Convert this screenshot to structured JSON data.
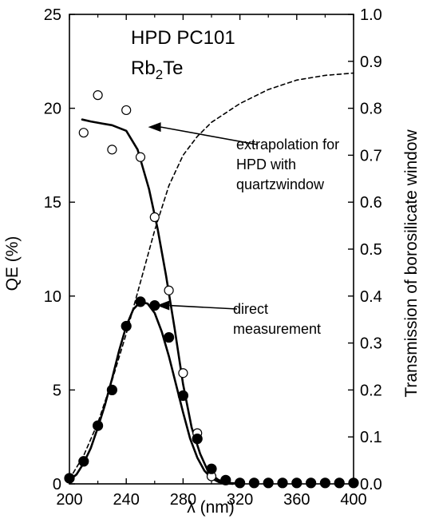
{
  "chart_data": {
    "type": "scatter",
    "title": {
      "line1": "HPD  PC101",
      "line2_base": "Rb",
      "line2_sub": "2",
      "line2_rest": "Te"
    },
    "xlabel": "λ (nm)",
    "ylabel_left": "QE (%)",
    "ylabel_right": "Transmission of borosilicate window",
    "xlim": [
      200,
      400
    ],
    "ylim_left": [
      0,
      25
    ],
    "ylim_right": [
      0.0,
      1.0
    ],
    "x_ticks": [
      200,
      240,
      280,
      320,
      360,
      400
    ],
    "y_ticks_left": [
      0,
      5,
      10,
      15,
      20,
      25
    ],
    "y_ticks_right": [
      "0.0",
      "0.1",
      "0.2",
      "0.3",
      "0.4",
      "0.5",
      "0.6",
      "0.7",
      "0.8",
      "0.9",
      "1.0"
    ],
    "series": [
      {
        "marker": "open-circle",
        "axis": "left",
        "x": [
          210,
          220,
          230,
          240,
          250,
          260,
          270,
          280,
          290,
          300
        ],
        "y": [
          18.7,
          20.7,
          17.8,
          19.9,
          17.4,
          14.2,
          10.3,
          5.9,
          2.7,
          0.4
        ]
      },
      {
        "marker": "filled-circle",
        "axis": "left",
        "x": [
          200,
          210,
          220,
          230,
          240,
          250,
          260,
          270,
          280,
          290,
          300,
          310,
          320,
          330,
          340,
          350,
          360,
          370,
          380,
          390,
          400
        ],
        "y": [
          0.3,
          1.2,
          3.1,
          5.0,
          8.4,
          9.7,
          9.5,
          7.8,
          4.7,
          2.4,
          0.8,
          0.2,
          0.05,
          0.05,
          0.05,
          0.05,
          0.05,
          0.05,
          0.05,
          0.05,
          0.05
        ]
      },
      {
        "line": "solid",
        "axis": "left",
        "x": [
          209,
          215,
          222,
          230,
          240,
          248,
          256,
          262,
          268,
          274,
          280,
          286,
          292,
          298,
          305,
          312,
          318
        ],
        "y": [
          19.4,
          19.3,
          19.2,
          19.1,
          18.8,
          17.8,
          15.7,
          13.6,
          11.1,
          8.3,
          5.3,
          3.0,
          1.6,
          0.6,
          0.2,
          0.05,
          0.02
        ]
      },
      {
        "line": "solid",
        "axis": "left",
        "x": [
          200,
          205,
          210,
          215,
          220,
          225,
          230,
          235,
          240,
          245,
          250,
          255,
          260,
          265,
          270,
          275,
          280,
          285,
          290,
          295,
          300,
          305,
          310,
          315
        ],
        "y": [
          0.2,
          0.5,
          1.1,
          1.9,
          3.0,
          4.2,
          5.6,
          7.1,
          8.4,
          9.3,
          9.7,
          9.6,
          9.1,
          8.1,
          6.8,
          5.3,
          3.8,
          2.4,
          1.4,
          0.7,
          0.3,
          0.1,
          0.03,
          0.0
        ]
      },
      {
        "line": "dashed",
        "axis": "right",
        "x": [
          200,
          210,
          220,
          230,
          240,
          250,
          260,
          270,
          280,
          290,
          300,
          320,
          340,
          360,
          380,
          400
        ],
        "y": [
          0.01,
          0.06,
          0.13,
          0.22,
          0.32,
          0.43,
          0.54,
          0.635,
          0.7,
          0.74,
          0.77,
          0.81,
          0.84,
          0.86,
          0.87,
          0.875
        ]
      }
    ],
    "annotations": [
      {
        "lines": [
          "extrapolation for",
          "HPD with",
          "quartzwindow"
        ],
        "arrow_to": [
          252,
          19.0
        ]
      },
      {
        "lines": [
          "direct",
          "measurement"
        ],
        "arrow_to": [
          258,
          9.5
        ]
      }
    ]
  }
}
